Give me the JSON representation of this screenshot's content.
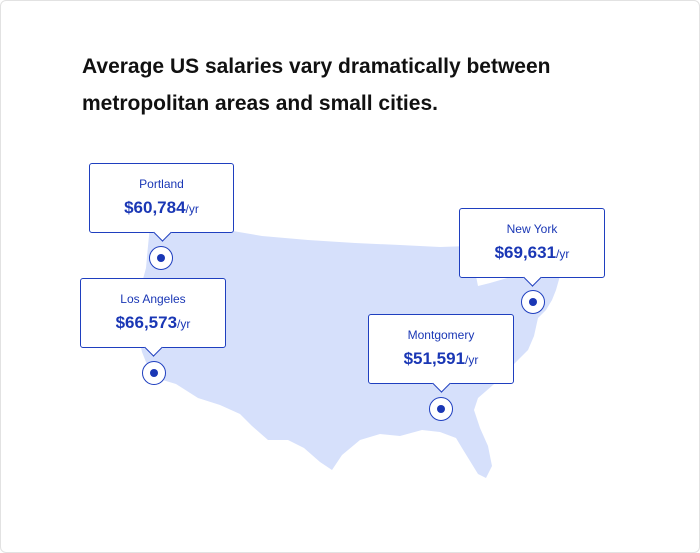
{
  "headline": "Average US salaries vary dramatically between metropolitan areas and small cities.",
  "colors": {
    "map_fill": "#d6e0fb",
    "accent": "#1a37b5",
    "callout_border": "#1f3fbf",
    "headline_text": "#111111"
  },
  "cities": [
    {
      "name": "Portland",
      "salary": "$60,784",
      "unit": "/yr"
    },
    {
      "name": "Los Angeles",
      "salary": "$66,573",
      "unit": "/yr"
    },
    {
      "name": "New York",
      "salary": "$69,631",
      "unit": "/yr"
    },
    {
      "name": "Montgomery",
      "salary": "$51,591",
      "unit": "/yr"
    }
  ]
}
